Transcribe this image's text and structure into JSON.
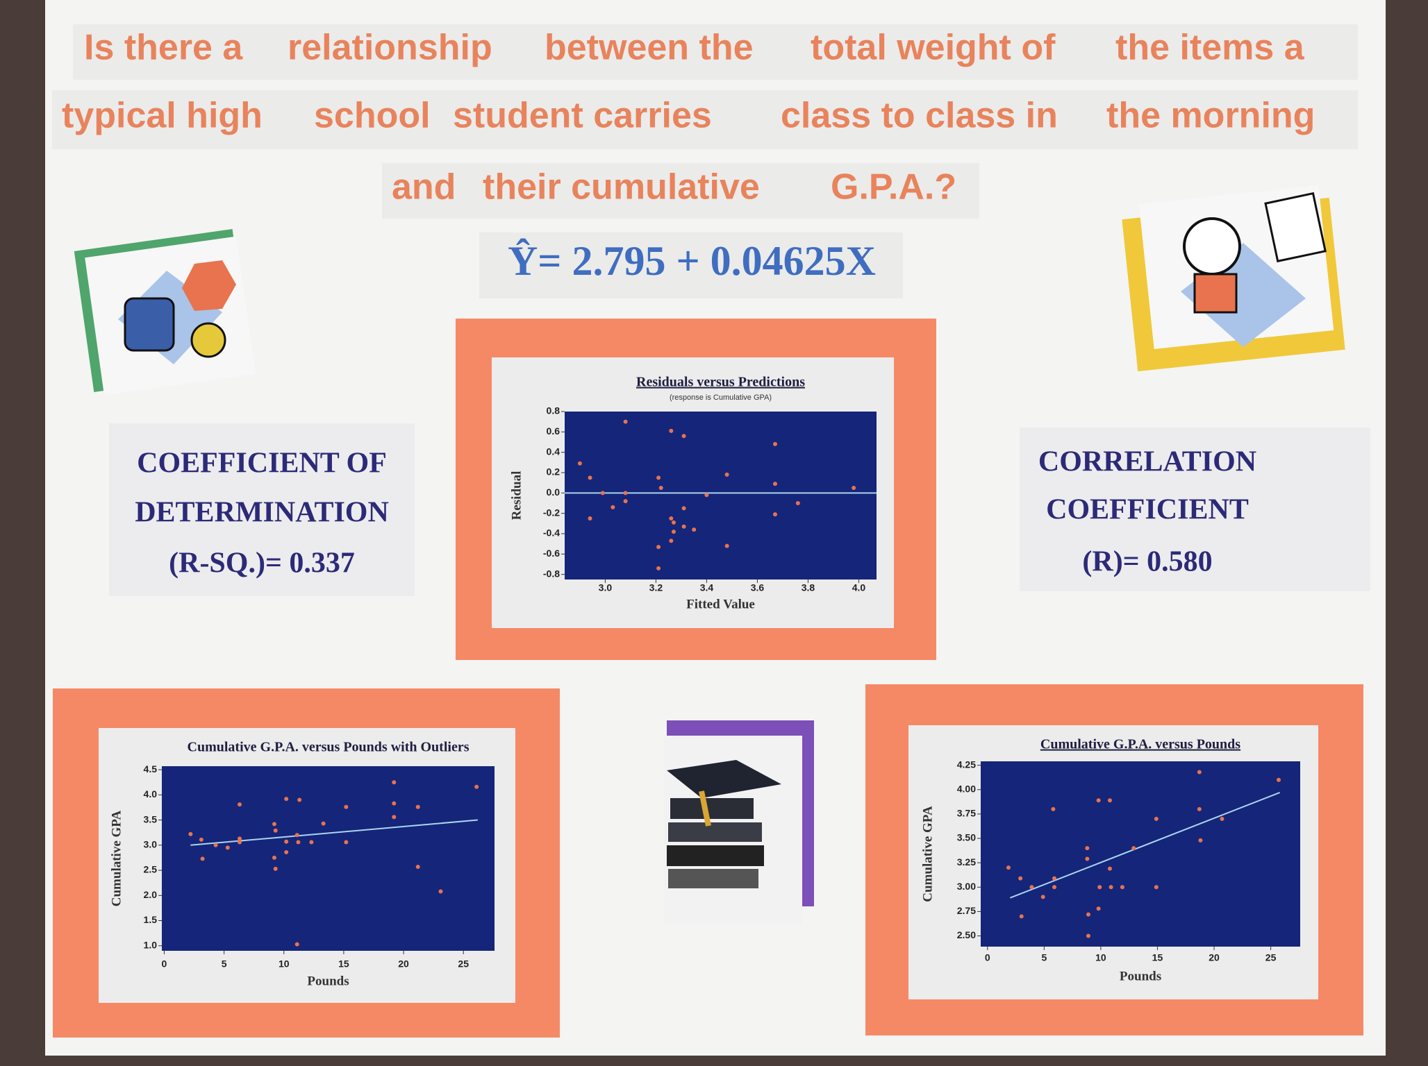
{
  "title": {
    "lines": [
      [
        "Is there a",
        "relationship",
        "between the",
        "total weight of",
        "the items a"
      ],
      [
        "typical high",
        "school",
        "student carries",
        "class to class in",
        "the morning"
      ],
      [
        "and",
        "their cumulative",
        "G.P.A.?"
      ]
    ]
  },
  "equation": "Ŷ= 2.795 + 0.04625X",
  "coefficient_of_determination": {
    "lines": [
      "COEFFICIENT OF",
      "DETERMINATION",
      "(R-SQ.)= 0.337"
    ]
  },
  "correlation_coefficient": {
    "lines": [
      "CORRELATION",
      "COEFFICIENT",
      "(R)= 0.580"
    ]
  },
  "chart_data": [
    {
      "type": "scatter",
      "title": "Residuals versus Predictions",
      "subtitle": "(response is Cumulative GPA)",
      "underline_title": true,
      "x_label": "Fitted Value",
      "y_label": "Residual",
      "x": [
        2.9,
        2.94,
        2.94,
        2.99,
        3.03,
        3.08,
        3.08,
        3.08,
        3.21,
        3.22,
        3.21,
        3.21,
        3.26,
        3.26,
        3.26,
        3.27,
        3.27,
        3.31,
        3.31,
        3.31,
        3.35,
        3.4,
        3.48,
        3.48,
        3.67,
        3.67,
        3.67,
        3.76,
        3.98
      ],
      "values": [
        0.29,
        0.15,
        -0.25,
        0.0,
        -0.14,
        0.7,
        0.0,
        -0.08,
        0.15,
        0.05,
        -0.53,
        -0.74,
        -0.47,
        0.61,
        -0.25,
        -0.29,
        -0.38,
        0.56,
        -0.15,
        -0.33,
        -0.36,
        -0.02,
        0.18,
        -0.52,
        0.48,
        0.09,
        -0.21,
        -0.1,
        0.05
      ],
      "reference_y": 0,
      "plot_color": "#15257a",
      "point_color": "#e8734e",
      "line_color": "#a9d6ee",
      "xlim": [
        2.84,
        4.07
      ],
      "ylim": [
        -0.85,
        0.8
      ],
      "xticks": [
        {
          "value": 3,
          "label": "3.0"
        },
        3.2,
        3.4,
        3.6,
        3.8,
        {
          "value": 4,
          "label": "4.0"
        }
      ],
      "yticks": [
        -0.8,
        -0.6,
        -0.4,
        -0.2,
        {
          "value": 0,
          "label": "0.0"
        },
        0.2,
        0.4,
        0.6,
        0.8
      ]
    },
    {
      "type": "scatter",
      "title": "Cumulative G.P.A. versus Pounds with Outliers",
      "underline_title": false,
      "x_label": "Pounds",
      "y_label": "Cumulative GPA",
      "x": [
        2.2,
        3.1,
        3.2,
        4.3,
        5.3,
        6.3,
        6.3,
        6.3,
        9.2,
        9.3,
        9.3,
        9.2,
        10.2,
        10.2,
        10.2,
        11.1,
        11.3,
        11.2,
        11.1,
        12.3,
        13.3,
        15.2,
        15.2,
        19.2,
        19.2,
        19.2,
        21.2,
        21.2,
        23.1,
        26.1
      ],
      "values": [
        3.22,
        3.11,
        2.73,
        3.0,
        2.95,
        3.81,
        3.06,
        3.13,
        3.42,
        3.29,
        2.53,
        2.75,
        3.92,
        3.07,
        2.86,
        3.2,
        3.9,
        3.06,
        1.03,
        3.06,
        3.43,
        3.76,
        3.06,
        4.25,
        3.83,
        3.56,
        3.76,
        2.57,
        2.08,
        4.16
      ],
      "fit_line": {
        "x": [
          2.2,
          26.2
        ],
        "values": [
          3.0,
          3.5
        ]
      },
      "plot_color": "#15257a",
      "point_color": "#e8734e",
      "line_color": "#a9d6ee",
      "xlim": [
        -0.2,
        27.6
      ],
      "ylim": [
        0.9,
        4.57
      ],
      "xticks": [
        0,
        5,
        10,
        15,
        20,
        25
      ],
      "yticks": [
        {
          "value": 1,
          "label": "1.0"
        },
        1.5,
        {
          "value": 2,
          "label": "2.0"
        },
        2.5,
        {
          "value": 3,
          "label": "3.0"
        },
        3.5,
        {
          "value": 4,
          "label": "4.0"
        },
        4.5
      ]
    },
    {
      "type": "scatter",
      "title": "Cumulative G.P.A. versus Pounds",
      "underline_title": true,
      "x_label": "Pounds",
      "y_label": "Cumulative GPA",
      "x": [
        1.85,
        2.9,
        3.0,
        3.9,
        4.9,
        5.8,
        5.9,
        5.9,
        8.8,
        8.8,
        8.9,
        8.9,
        9.8,
        9.9,
        9.8,
        10.8,
        10.8,
        10.9,
        11.9,
        12.9,
        14.9,
        14.9,
        18.7,
        18.7,
        18.8,
        20.7,
        25.7
      ],
      "values": [
        3.2,
        3.09,
        2.7,
        3.0,
        2.9,
        3.8,
        3.09,
        3.0,
        3.4,
        3.29,
        2.72,
        2.5,
        3.89,
        3.0,
        2.78,
        3.89,
        3.19,
        3.0,
        3.0,
        3.4,
        3.7,
        3.0,
        4.18,
        3.8,
        3.48,
        3.7,
        4.1
      ],
      "fit_line": {
        "x": [
          2.0,
          25.8
        ],
        "values": [
          2.89,
          3.97
        ]
      },
      "plot_color": "#15257a",
      "point_color": "#e8734e",
      "line_color": "#a9d6ee",
      "xlim": [
        -0.6,
        27.6
      ],
      "ylim": [
        2.39,
        4.29
      ],
      "xticks": [
        0,
        5,
        10,
        15,
        20,
        25
      ],
      "yticks": [
        {
          "value": 2.5,
          "label": "2.50"
        },
        2.75,
        {
          "value": 3,
          "label": "3.00"
        },
        3.25,
        {
          "value": 3.5,
          "label": "3.50"
        },
        3.75,
        {
          "value": 4,
          "label": "4.00"
        },
        4.25
      ]
    }
  ]
}
